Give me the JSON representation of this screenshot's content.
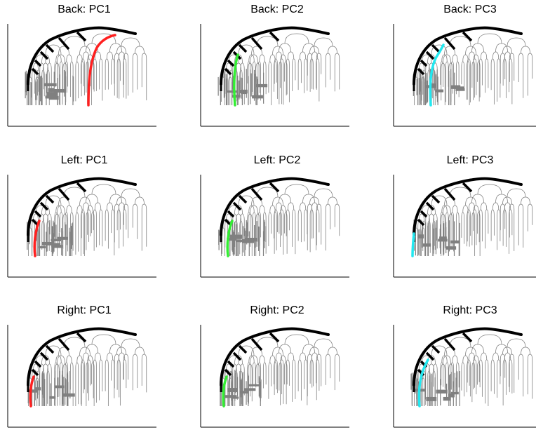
{
  "colors": {
    "tree": "#808080",
    "main": "#000000",
    "PC1": "#ff2020",
    "PC2": "#33ee33",
    "PC3": "#22e8f0",
    "axis": "#000000"
  },
  "panels": [
    {
      "title": "Back: PC1",
      "pc": "PC1",
      "tree": "back"
    },
    {
      "title": "Back: PC2",
      "pc": "PC2",
      "tree": "back"
    },
    {
      "title": "Back: PC3",
      "pc": "PC3",
      "tree": "back"
    },
    {
      "title": "Left: PC1",
      "pc": "PC1",
      "tree": "left"
    },
    {
      "title": "Left: PC2",
      "pc": "PC2",
      "tree": "left"
    },
    {
      "title": "Left: PC3",
      "pc": "PC3",
      "tree": "left"
    },
    {
      "title": "Right: PC1",
      "pc": "PC1",
      "tree": "right"
    },
    {
      "title": "Right: PC2",
      "pc": "PC2",
      "tree": "right"
    },
    {
      "title": "Right: PC3",
      "pc": "PC3",
      "tree": "right"
    }
  ]
}
